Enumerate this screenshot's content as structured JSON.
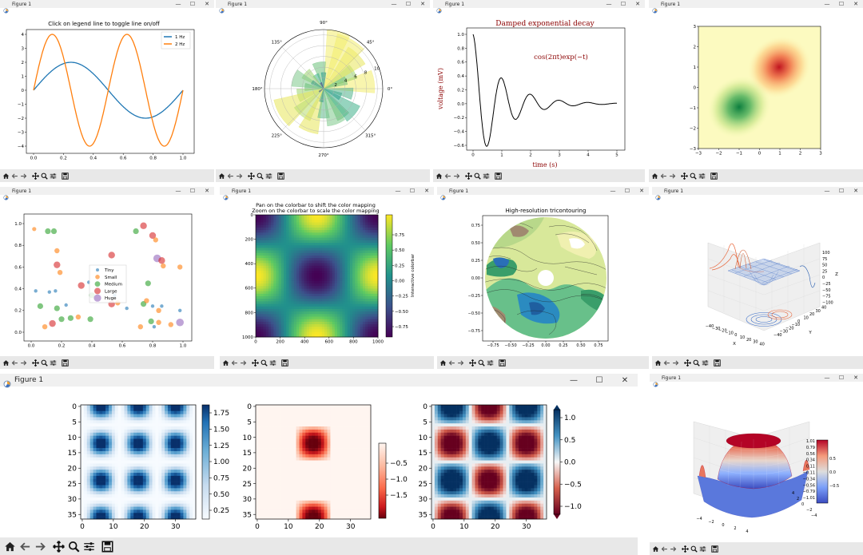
{
  "window_title": "Figure 1",
  "window_controls": {
    "minimize": "—",
    "maximize": "☐",
    "close": "✕"
  },
  "toolbar_icons": [
    "home-icon",
    "back-icon",
    "forward-icon",
    "pan-icon",
    "zoom-icon",
    "configure-subplots-icon",
    "save-icon"
  ],
  "figures": {
    "legend_toggle": {
      "title": "Click on legend line to toggle line on/off",
      "legend": [
        "1 Hz",
        "2 Hz"
      ],
      "colors": {
        "s1": "#1f77b4",
        "s2": "#ff7f0e"
      },
      "xticks": [
        "0.0",
        "0.2",
        "0.4",
        "0.6",
        "0.8",
        "1.0"
      ],
      "yticks": [
        "4",
        "3",
        "2",
        "1",
        "0",
        "−1",
        "−2",
        "−3",
        "−4"
      ]
    },
    "polar_bars": {
      "angle_labels": [
        "90°",
        "45°",
        "0°",
        "315°",
        "270°",
        "225°",
        "180°",
        "135°"
      ],
      "radial_labels": [
        "2",
        "4",
        "6",
        "8",
        "10"
      ]
    },
    "damped": {
      "title": "Damped exponential decay",
      "formula": "cos(2πt)exp(−t)",
      "xlabel": "time (s)",
      "ylabel": "voltage (mV)",
      "xticks": [
        "0",
        "1",
        "2",
        "3",
        "4",
        "5"
      ],
      "yticks": [
        "1.0",
        "0.8",
        "0.6",
        "0.4",
        "0.2",
        "0.0",
        "−0.2",
        "−0.4",
        "−0.6"
      ],
      "color": "#8b0000"
    },
    "rdylgn": {
      "xticks": [
        "−3",
        "−2",
        "−1",
        "0",
        "1",
        "2",
        "3"
      ],
      "yticks": [
        "3",
        "2",
        "1",
        "0",
        "−1",
        "−2",
        "−3"
      ]
    },
    "scatter_sizes": {
      "legend": [
        "Tiny",
        "Small",
        "Medium",
        "Large",
        "Huge"
      ],
      "colors": [
        "#1f77b4",
        "#ff7f0e",
        "#2ca02c",
        "#d62728",
        "#9467bd"
      ],
      "xticks": [
        "0.0",
        "0.2",
        "0.4",
        "0.6",
        "0.8",
        "1.0"
      ],
      "yticks": [
        "1.0",
        "0.8",
        "0.6",
        "0.4",
        "0.2",
        "0.0"
      ]
    },
    "interactive_cbar": {
      "title_line1": "Pan on the colorbar to shift the color mapping",
      "title_line2": "Zoom on the colorbar to scale the color mapping",
      "cbar_label": "Interactive colorbar",
      "cbar_ticks": [
        "0.75",
        "0.50",
        "0.25",
        "0.00",
        "−0.25",
        "−0.50",
        "−0.75"
      ],
      "xticks": [
        "0",
        "200",
        "400",
        "600",
        "800",
        "1000"
      ],
      "yticks": [
        "0",
        "200",
        "400",
        "600",
        "800",
        "1000"
      ]
    },
    "tricontour": {
      "title": "High-resolution tricontouring",
      "xticks": [
        "−0.75",
        "−0.50",
        "−0.25",
        "0.00",
        "0.25",
        "0.50",
        "0.75"
      ],
      "yticks": [
        "0.75",
        "0.50",
        "0.25",
        "0.00",
        "−0.25",
        "−0.50",
        "−0.75"
      ]
    },
    "surface3d": {
      "xlabel": "X",
      "ylabel": "Y",
      "zlabel": "Z",
      "xticks": [
        "−40",
        "−30",
        "−20",
        "−10",
        "0",
        "10",
        "20",
        "30",
        "40"
      ],
      "yticks": [
        "−40",
        "−30",
        "−20",
        "−10",
        "0",
        "10",
        "20",
        "30",
        "40"
      ],
      "zticks": [
        "100",
        "75",
        "50",
        "25",
        "0",
        "−25",
        "−50",
        "−75",
        "−100"
      ]
    },
    "three_imshow": {
      "ticks": [
        "0",
        "10",
        "20",
        "30"
      ],
      "yticks": [
        "0",
        "5",
        "10",
        "15",
        "20",
        "25",
        "30",
        "35"
      ],
      "cbar1": [
        "1.75",
        "1.50",
        "1.25",
        "1.00",
        "0.75",
        "0.50",
        "0.25"
      ],
      "cbar2": [
        "−0.5",
        "−1.0",
        "−1.5"
      ],
      "cbar3": [
        "1.0",
        "0.5",
        "0.0",
        "−0.5",
        "−1.0"
      ]
    },
    "coolwarm3d": {
      "cbar_ticks": [
        "1.01",
        "0.79",
        "0.56",
        "0.34",
        "0.11",
        "−0.11",
        "−0.34",
        "−0.56",
        "−0.79",
        "−1.01"
      ],
      "cbar_side_ticks": [
        "0.5",
        "0.0",
        "−0.5"
      ],
      "xticks": [
        "−4",
        "−2",
        "0",
        "2",
        "4"
      ],
      "yticks": [
        "4",
        "2",
        "0",
        "−2",
        "−4"
      ]
    }
  }
}
